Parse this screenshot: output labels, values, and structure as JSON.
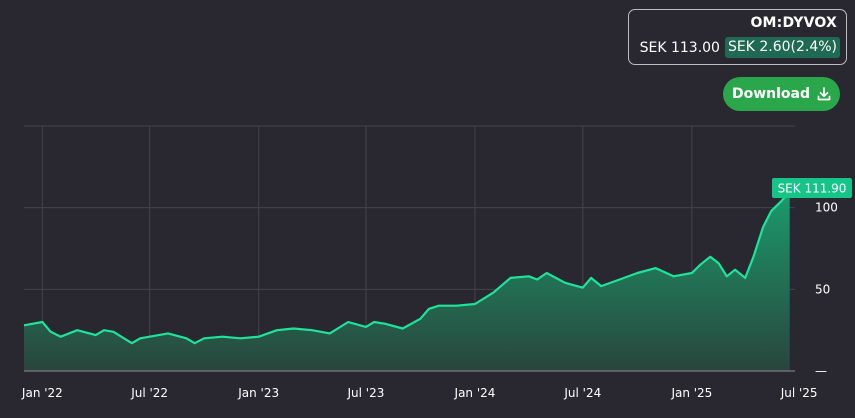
{
  "ticker": {
    "symbol": "OM:DYVOX",
    "price": "SEK 113.00",
    "change": "SEK 2.60(2.4%)"
  },
  "download_button": {
    "label": "Download",
    "icon": "download-icon"
  },
  "colors": {
    "background": "#292831",
    "line": "#1ee39a",
    "area_top": "#1b9b6d",
    "area_bottom": "#29453c",
    "download": "#2aa74a",
    "badge": "#1f6a53",
    "price_tag": "#17c487"
  },
  "chart_data": {
    "type": "area",
    "current_price_label": "SEK 111.90",
    "x_tick_labels": [
      "Jan '22",
      "Jul '22",
      "Jan '23",
      "Jul '23",
      "Jan '24",
      "Jul '24",
      "Jan '25",
      "Jul '25"
    ],
    "y_tick_labels": [
      "100",
      "50",
      "0"
    ],
    "ylim": [
      0,
      150
    ],
    "grid": true,
    "series": [
      {
        "x": [
          "2021-12-01",
          "2022-01-01",
          "2022-01-15",
          "2022-02-01",
          "2022-03-01",
          "2022-04-01",
          "2022-04-15",
          "2022-05-01",
          "2022-06-01",
          "2022-06-15",
          "2022-07-01",
          "2022-08-01",
          "2022-09-01",
          "2022-09-15",
          "2022-10-01",
          "2022-11-01",
          "2022-12-01",
          "2023-01-01",
          "2023-02-01",
          "2023-03-01",
          "2023-04-01",
          "2023-05-01",
          "2023-06-01",
          "2023-07-01",
          "2023-07-15",
          "2023-08-01",
          "2023-09-01",
          "2023-10-01",
          "2023-10-15",
          "2023-11-01",
          "2023-12-01",
          "2024-01-01",
          "2024-02-01",
          "2024-03-01",
          "2024-04-01",
          "2024-04-15",
          "2024-05-01",
          "2024-06-01",
          "2024-07-01",
          "2024-07-15",
          "2024-08-01",
          "2024-09-01",
          "2024-10-01",
          "2024-11-01",
          "2024-12-01",
          "2025-01-01",
          "2025-01-15",
          "2025-02-01",
          "2025-02-15",
          "2025-03-01",
          "2025-03-15",
          "2025-04-01",
          "2025-04-15",
          "2025-05-01",
          "2025-05-15",
          "2025-06-01",
          "2025-06-15"
        ],
        "values": [
          28,
          30,
          24,
          21,
          25,
          22,
          25,
          24,
          17,
          20,
          21,
          23,
          20,
          17,
          20,
          21,
          20,
          21,
          25,
          26,
          25,
          23,
          30,
          27,
          30,
          29,
          26,
          32,
          38,
          40,
          40,
          41,
          48,
          57,
          58,
          56,
          60,
          54,
          51,
          57,
          52,
          56,
          60,
          63,
          58,
          60,
          65,
          70,
          66,
          58,
          62,
          57,
          70,
          88,
          98,
          104,
          110
        ]
      }
    ]
  }
}
